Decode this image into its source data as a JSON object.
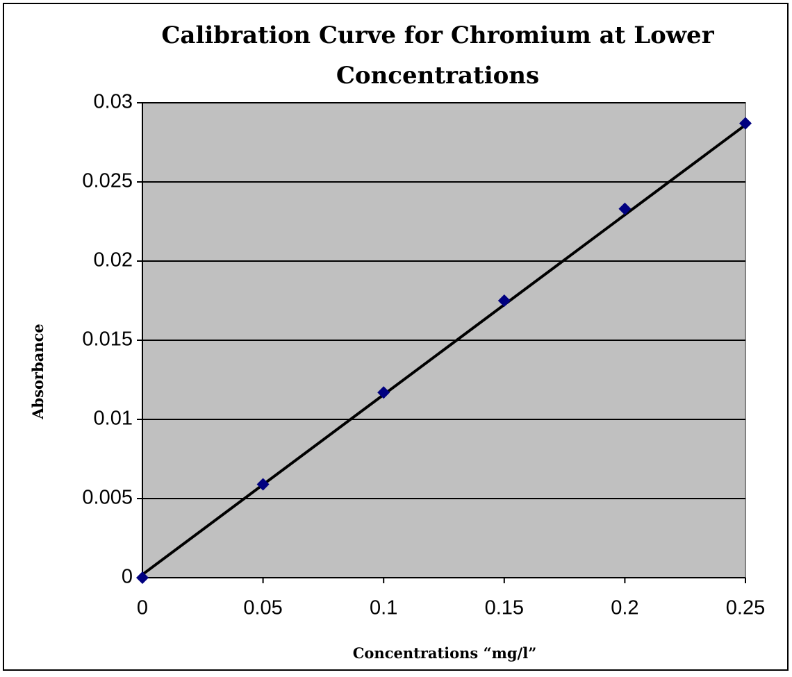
{
  "chart_data": {
    "type": "scatter",
    "title": "Calibration Curve for Chromium at Lower Concentrations",
    "x_label": "Concentrations “mg/l”",
    "y_label": "Absorbance",
    "series": [
      {
        "name": "Absorbance",
        "color": "#000080",
        "x": [
          0,
          0.05,
          0.1,
          0.15,
          0.2,
          0.25
        ],
        "values": [
          0,
          0.0059,
          0.0117,
          0.0175,
          0.0233,
          0.0287
        ]
      }
    ],
    "trendline": {
      "color": "#000000",
      "x": [
        0,
        0.25
      ],
      "values": [
        0.0002,
        0.0286
      ]
    },
    "xlim": [
      0,
      0.25
    ],
    "xticks": [
      0,
      0.05,
      0.1,
      0.15,
      0.2,
      0.25
    ],
    "ylim": [
      0,
      0.03
    ],
    "yticks": [
      0,
      0.005,
      0.01,
      0.015,
      0.02,
      0.025,
      0.03
    ],
    "grid": true,
    "plot_background": "#c0c0c0"
  }
}
